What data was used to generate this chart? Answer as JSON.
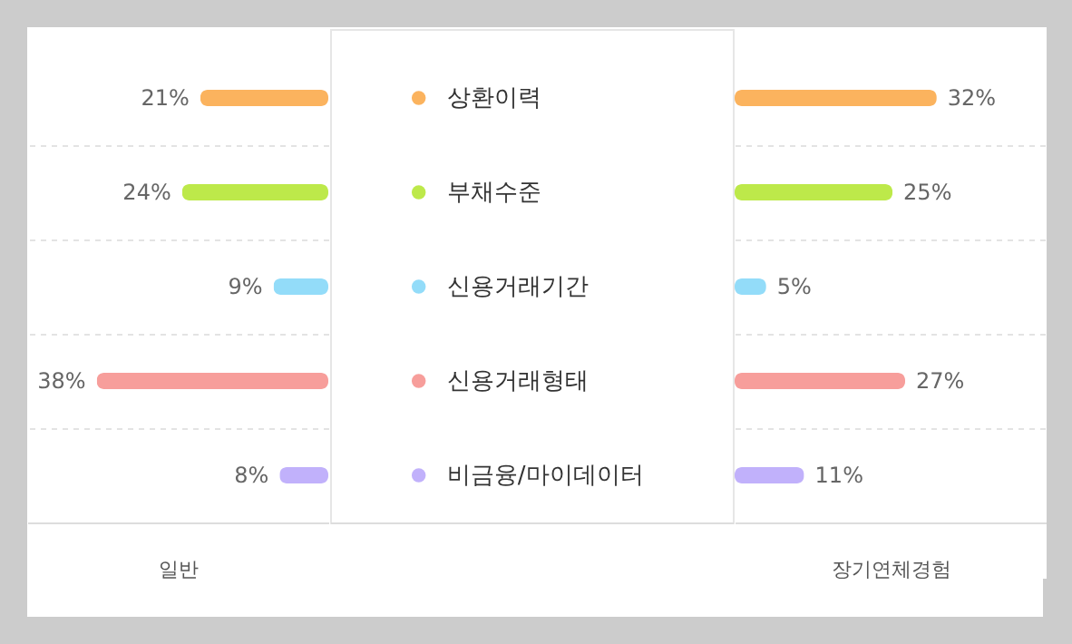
{
  "chart_data": [
    {
      "type": "bar",
      "orientation": "horizontal",
      "xlabel": "일반",
      "categories": [
        "상환이력",
        "부채수준",
        "신용거래기간",
        "신용거래형태",
        "비금융/마이데이터"
      ],
      "values": [
        21,
        24,
        9,
        38,
        8
      ],
      "value_labels": [
        "21%",
        "24%",
        "9%",
        "38%",
        "8%"
      ],
      "colors": [
        "#fbb35e",
        "#bde94a",
        "#93dcf9",
        "#f79e9b",
        "#c1b1fb"
      ],
      "grid": "y",
      "tick_labels": "y"
    },
    {
      "type": "bar",
      "orientation": "horizontal",
      "xlabel": "장기연체경험",
      "categories": [
        null,
        null,
        null,
        null,
        null
      ],
      "values": [
        32,
        25,
        5,
        27,
        11
      ],
      "value_labels": [
        "32%",
        "25%",
        "5%",
        "27%",
        "11%"
      ],
      "colors": [
        "#fbb35e",
        "#bde94a",
        "#93dcf9",
        "#f79e9b",
        "#c1b1fb"
      ],
      "grid": "y",
      "tick_labels": false
    }
  ]
}
